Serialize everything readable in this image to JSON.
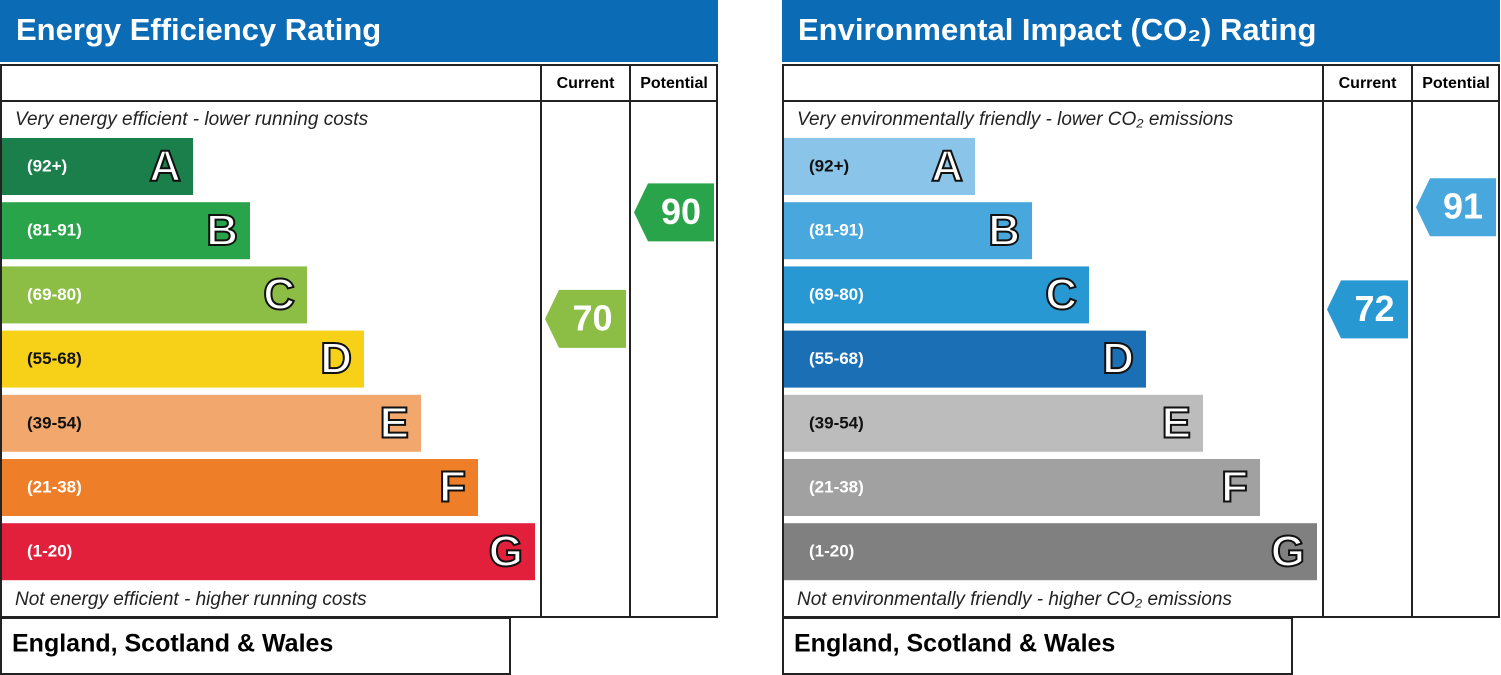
{
  "panels": [
    {
      "title": "Energy Efficiency Rating",
      "current_label": "Current",
      "potential_label": "Potential",
      "top_note": "Very energy efficient - lower running costs",
      "bottom_note": "Not energy efficient - higher running costs",
      "footer": "England, Scotland & Wales",
      "header_color": "#0b6cb5",
      "bands": [
        {
          "range": "(92+)",
          "letter": "A",
          "color": "#1b7f4c"
        },
        {
          "range": "(81-91)",
          "letter": "B",
          "color": "#2aa44a"
        },
        {
          "range": "(69-80)",
          "letter": "C",
          "color": "#8cbd44"
        },
        {
          "range": "(55-68)",
          "letter": "D",
          "color": "#f6d117"
        },
        {
          "range": "(39-54)",
          "letter": "E",
          "color": "#f2a86c"
        },
        {
          "range": "(21-38)",
          "letter": "F",
          "color": "#ee7e27"
        },
        {
          "range": "(1-20)",
          "letter": "G",
          "color": "#e3203c"
        }
      ],
      "current": 70,
      "potential": 90
    },
    {
      "title": "Environmental Impact (CO₂) Rating",
      "current_label": "Current",
      "potential_label": "Potential",
      "top_note": "Very environmentally friendly - lower CO₂ emissions",
      "bottom_note": "Not environmentally friendly - higher CO₂ emissions",
      "footer": "England, Scotland & Wales",
      "header_color": "#0b6cb5",
      "bands": [
        {
          "range": "(92+)",
          "letter": "A",
          "color": "#8ac4e8"
        },
        {
          "range": "(81-91)",
          "letter": "B",
          "color": "#48a7dc"
        },
        {
          "range": "(69-80)",
          "letter": "C",
          "color": "#2898d2"
        },
        {
          "range": "(55-68)",
          "letter": "D",
          "color": "#1b6fb5"
        },
        {
          "range": "(39-54)",
          "letter": "E",
          "color": "#bcbcbc"
        },
        {
          "range": "(21-38)",
          "letter": "F",
          "color": "#a1a1a1"
        },
        {
          "range": "(1-20)",
          "letter": "G",
          "color": "#808080"
        }
      ],
      "current": 72,
      "potential": 91
    }
  ]
}
